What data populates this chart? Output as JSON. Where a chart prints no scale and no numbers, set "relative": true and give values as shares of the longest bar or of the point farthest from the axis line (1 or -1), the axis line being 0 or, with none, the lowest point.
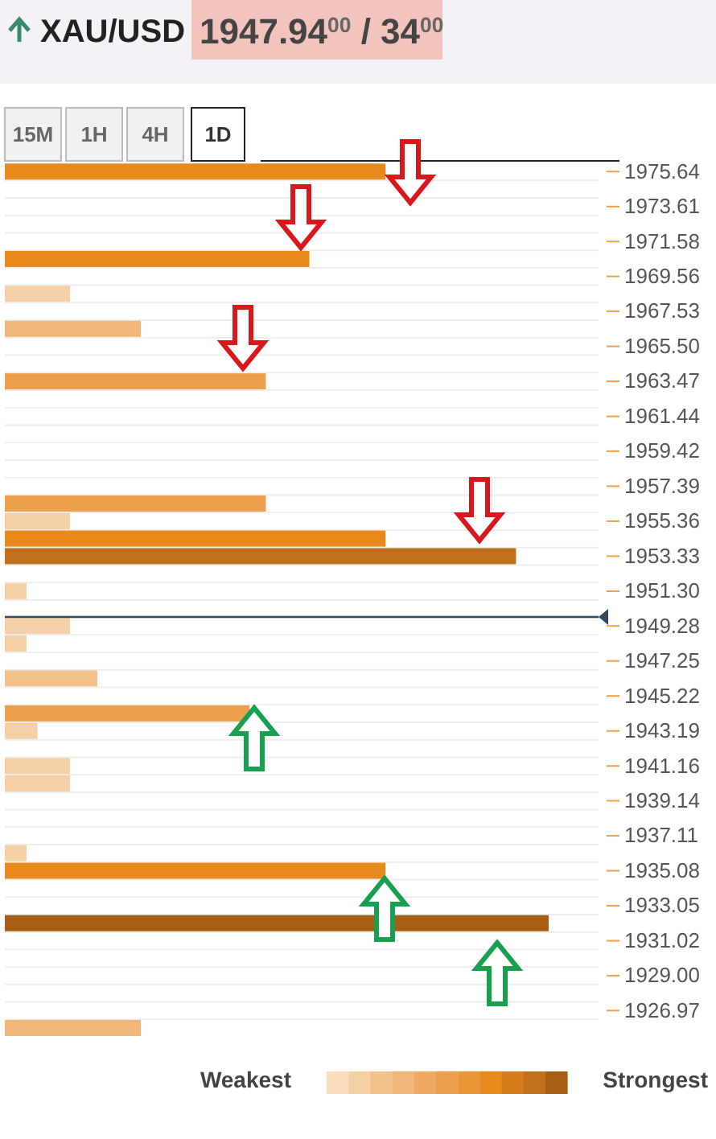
{
  "chart_data": {
    "type": "bar",
    "orientation": "horizontal",
    "relative": true,
    "title": "XAU/USD",
    "subtitle": "1947.94$^{00}$ / 34$^{00}$",
    "x": [
      1975.64,
      1970.57,
      1968.55,
      1966.52,
      1963.47,
      1956.38,
      1955.36,
      1954.35,
      1953.33,
      1951.3,
      1949.28,
      1948.27,
      1946.24,
      1944.21,
      1943.19,
      1941.16,
      1940.15,
      1936.1,
      1935.08,
      1932.04,
      1925.96
    ],
    "values": [
      0.7,
      0.56,
      0.12,
      0.25,
      0.48,
      0.48,
      0.12,
      0.7,
      0.94,
      0.04,
      0.12,
      0.04,
      0.17,
      0.45,
      0.06,
      0.12,
      0.12,
      0.04,
      0.7,
      1,
      0.25
    ],
    "colors": [
      "#e8891e",
      "#e8891e",
      "#f6d0a6",
      "#f0b677",
      "#eca04e",
      "#eca04e",
      "#f6d0a6",
      "#e8891e",
      "#c1711e",
      "#f6d0a6",
      "#f6d0a6",
      "#f6d0a6",
      "#f3c18b",
      "#eca04e",
      "#f6d0a6",
      "#f6d0a6",
      "#f6d0a6",
      "#f6d0a6",
      "#e8891e",
      "#a85e14",
      "#f0b677"
    ],
    "ylim": [
      1925.4,
      1976.26
    ],
    "yticks": [
      1975.64,
      1973.61,
      1971.58,
      1969.56,
      1967.53,
      {
        "value": 1965.5,
        "label": "1965.50"
      },
      1963.47,
      1961.44,
      1959.42,
      1957.39,
      1955.36,
      1953.33,
      {
        "value": 1951.3,
        "label": "1951.30"
      },
      1949.28,
      1947.25,
      1945.22,
      1943.19,
      1941.16,
      1939.14,
      1937.11,
      1935.08,
      1933.05,
      1931.02,
      {
        "value": 1929.0,
        "label": "1929.00"
      },
      1926.97
    ],
    "grid": "y",
    "ref_lines": [
      {
        "axis": "y",
        "value": 1949.8,
        "color": "#34495e"
      }
    ],
    "annotations": [
      "15M",
      "1H",
      "4H",
      "1D",
      "Weakest",
      "Strongest"
    ]
  }
}
